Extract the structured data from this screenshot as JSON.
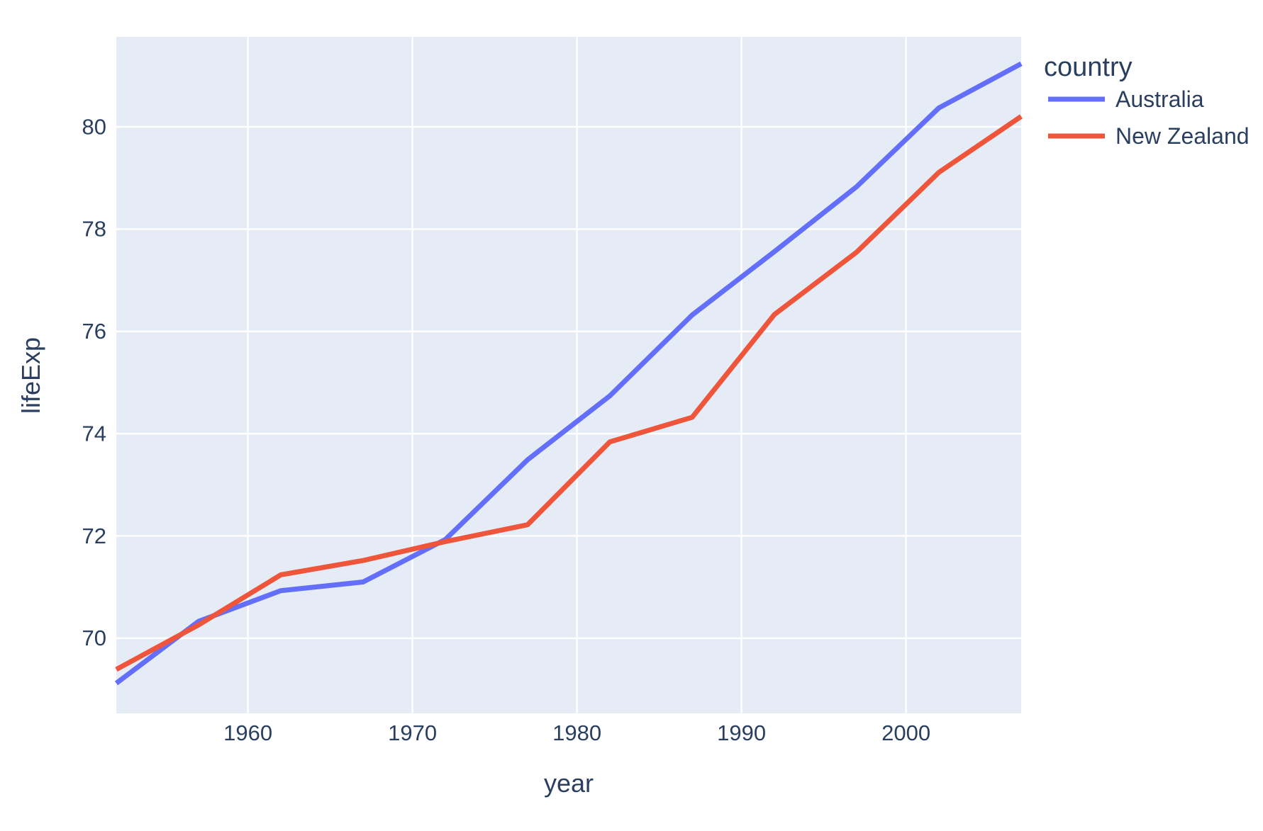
{
  "style": {
    "plot_bg": "#e5ecf6",
    "paper_bg": "#ffffff",
    "grid_color": "#ffffff",
    "text_color": "#2a3f5f"
  },
  "chart_data": {
    "type": "line",
    "title": "",
    "xlabel": "year",
    "ylabel": "lifeExp",
    "legend_title": "country",
    "x": [
      1952,
      1957,
      1962,
      1967,
      1972,
      1977,
      1982,
      1987,
      1992,
      1997,
      2002,
      2007
    ],
    "series": [
      {
        "name": "Australia",
        "color": "#636efa",
        "values": [
          69.12,
          70.33,
          70.93,
          71.1,
          71.93,
          73.49,
          74.74,
          76.32,
          77.56,
          78.83,
          80.37,
          81.235
        ]
      },
      {
        "name": "New Zealand",
        "color": "#ef553b",
        "values": [
          69.39,
          70.26,
          71.24,
          71.52,
          71.89,
          72.22,
          73.84,
          74.32,
          76.33,
          77.55,
          79.11,
          80.204
        ]
      }
    ],
    "x_range": [
      1952,
      2007
    ],
    "y_range": [
      68.53,
      81.76
    ],
    "x_ticks": [
      1960,
      1970,
      1980,
      1990,
      2000
    ],
    "y_ticks": [
      70,
      72,
      74,
      76,
      78,
      80
    ],
    "grid": true,
    "legend_position": "top-right-outside"
  }
}
